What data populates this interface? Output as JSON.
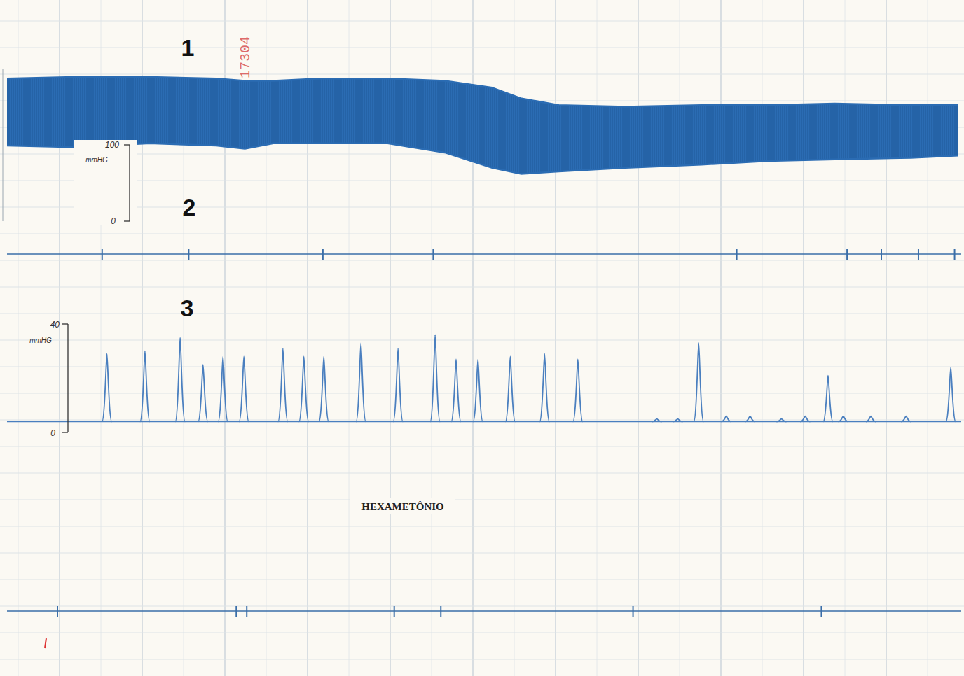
{
  "chart_data": [
    {
      "type": "band",
      "label": "1",
      "stamp": "17304",
      "x": [
        0,
        7,
        15,
        22,
        25,
        28,
        33,
        40,
        46,
        51,
        54,
        58,
        65,
        73,
        80,
        87,
        95,
        100
      ],
      "upper": [
        187,
        189,
        189,
        187,
        184,
        184,
        187,
        187,
        184,
        175,
        161,
        152,
        150,
        152,
        152,
        154,
        152,
        152
      ],
      "lower": [
        99,
        97,
        102,
        99,
        95,
        102,
        102,
        102,
        90,
        70,
        62,
        65,
        70,
        74,
        79,
        81,
        83,
        86
      ],
      "color": "#2b6cb3",
      "xlim": [
        0,
        100
      ],
      "ylim": [
        0,
        200
      ],
      "yticks": [
        0,
        100
      ],
      "ylabel": "mmHG",
      "tick_labels": "y"
    },
    {
      "type": "event",
      "label": "2",
      "x": [
        10,
        19.1,
        33.2,
        44.8,
        76.7,
        88.3,
        91.9,
        95.8,
        99.6
      ],
      "color": "#3a6ea8",
      "xlim": [
        0,
        100
      ],
      "tick_labels": false
    },
    {
      "type": "spikes",
      "label": "3",
      "annotation": "HEXAMETÔNIO",
      "x": [
        10.5,
        14.5,
        18.2,
        20.6,
        22.7,
        24.9,
        29,
        31.2,
        33.3,
        37.2,
        41.1,
        45,
        47.2,
        49.5,
        52.9,
        56.5,
        60,
        68.3,
        70.5,
        72.7,
        75.6,
        78.1,
        81.4,
        83.9,
        86.3,
        87.9,
        90.8,
        94.5,
        99.2
      ],
      "values": [
        29,
        30,
        35,
        25,
        28,
        28,
        31,
        28,
        28,
        33,
        31,
        36,
        27,
        27,
        28,
        29,
        27,
        5,
        5,
        33,
        6,
        6,
        5,
        6,
        21,
        6,
        6,
        6,
        24
      ],
      "baseline": 4,
      "color": "#4a7fbf",
      "xlim": [
        0,
        100
      ],
      "ylim": [
        0,
        40
      ],
      "yticks": [
        0,
        40
      ],
      "ylabel": "mmHG",
      "tick_labels": "y"
    },
    {
      "type": "event",
      "x": [
        5.3,
        24.1,
        25.2,
        40.7,
        45.6,
        65.8,
        85.6
      ],
      "color": "#3a6ea8",
      "xlim": [
        0,
        100
      ],
      "tick_labels": false
    }
  ]
}
